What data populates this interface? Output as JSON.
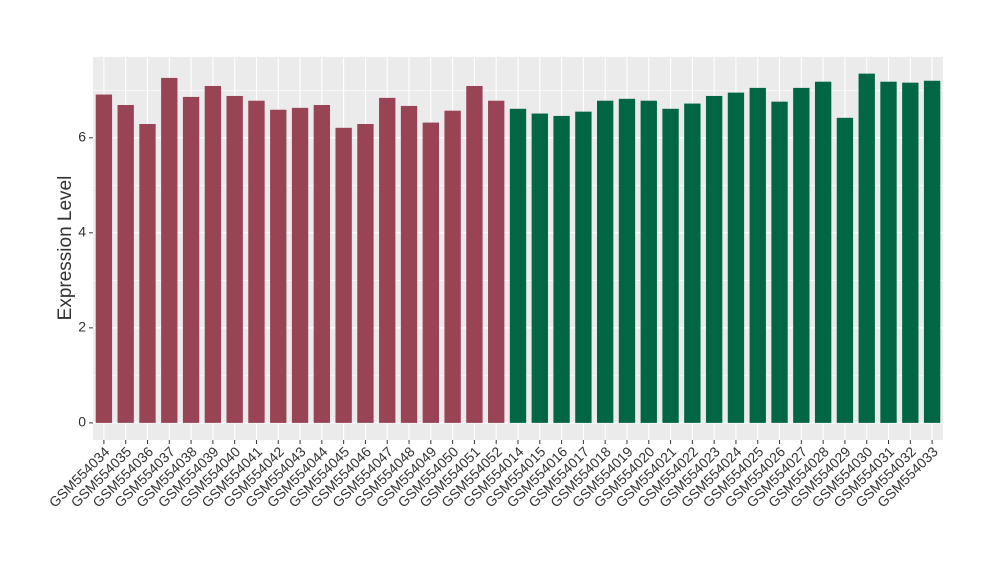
{
  "chart_data": {
    "type": "bar",
    "y_label": "Expression Level",
    "categories": [
      "GSM554034",
      "GSM554035",
      "GSM554036",
      "GSM554037",
      "GSM554038",
      "GSM554039",
      "GSM554040",
      "GSM554041",
      "GSM554042",
      "GSM554043",
      "GSM554044",
      "GSM554045",
      "GSM554046",
      "GSM554047",
      "GSM554048",
      "GSM554049",
      "GSM554050",
      "GSM554051",
      "GSM554052",
      "GSM554014",
      "GSM554015",
      "GSM554016",
      "GSM554017",
      "GSM554018",
      "GSM554019",
      "GSM554020",
      "GSM554021",
      "GSM554022",
      "GSM554023",
      "GSM554024",
      "GSM554025",
      "GSM554026",
      "GSM554027",
      "GSM554028",
      "GSM554029",
      "GSM554030",
      "GSM554031",
      "GSM554032",
      "GSM554033"
    ],
    "values": [
      6.91,
      6.69,
      6.29,
      7.26,
      6.86,
      7.09,
      6.88,
      6.78,
      6.59,
      6.63,
      6.69,
      6.21,
      6.29,
      6.84,
      6.67,
      6.32,
      6.57,
      7.09,
      6.78,
      6.61,
      6.51,
      6.46,
      6.55,
      6.78,
      6.82,
      6.78,
      6.61,
      6.72,
      6.88,
      6.95,
      7.05,
      6.76,
      7.05,
      7.18,
      6.42,
      7.35,
      7.18,
      7.16,
      7.2
    ],
    "colors": [
      "#994455",
      "#994455",
      "#994455",
      "#994455",
      "#994455",
      "#994455",
      "#994455",
      "#994455",
      "#994455",
      "#994455",
      "#994455",
      "#994455",
      "#994455",
      "#994455",
      "#994455",
      "#994455",
      "#994455",
      "#994455",
      "#994455",
      "#006644",
      "#006644",
      "#006644",
      "#006644",
      "#006644",
      "#006644",
      "#006644",
      "#006644",
      "#006644",
      "#006644",
      "#006644",
      "#006644",
      "#006644",
      "#006644",
      "#006644",
      "#006644",
      "#006644",
      "#006644",
      "#006644",
      "#006644"
    ],
    "ylim": [
      -0.36,
      7.7
    ],
    "yticks": [
      0,
      2,
      4,
      6
    ],
    "grid": true
  }
}
